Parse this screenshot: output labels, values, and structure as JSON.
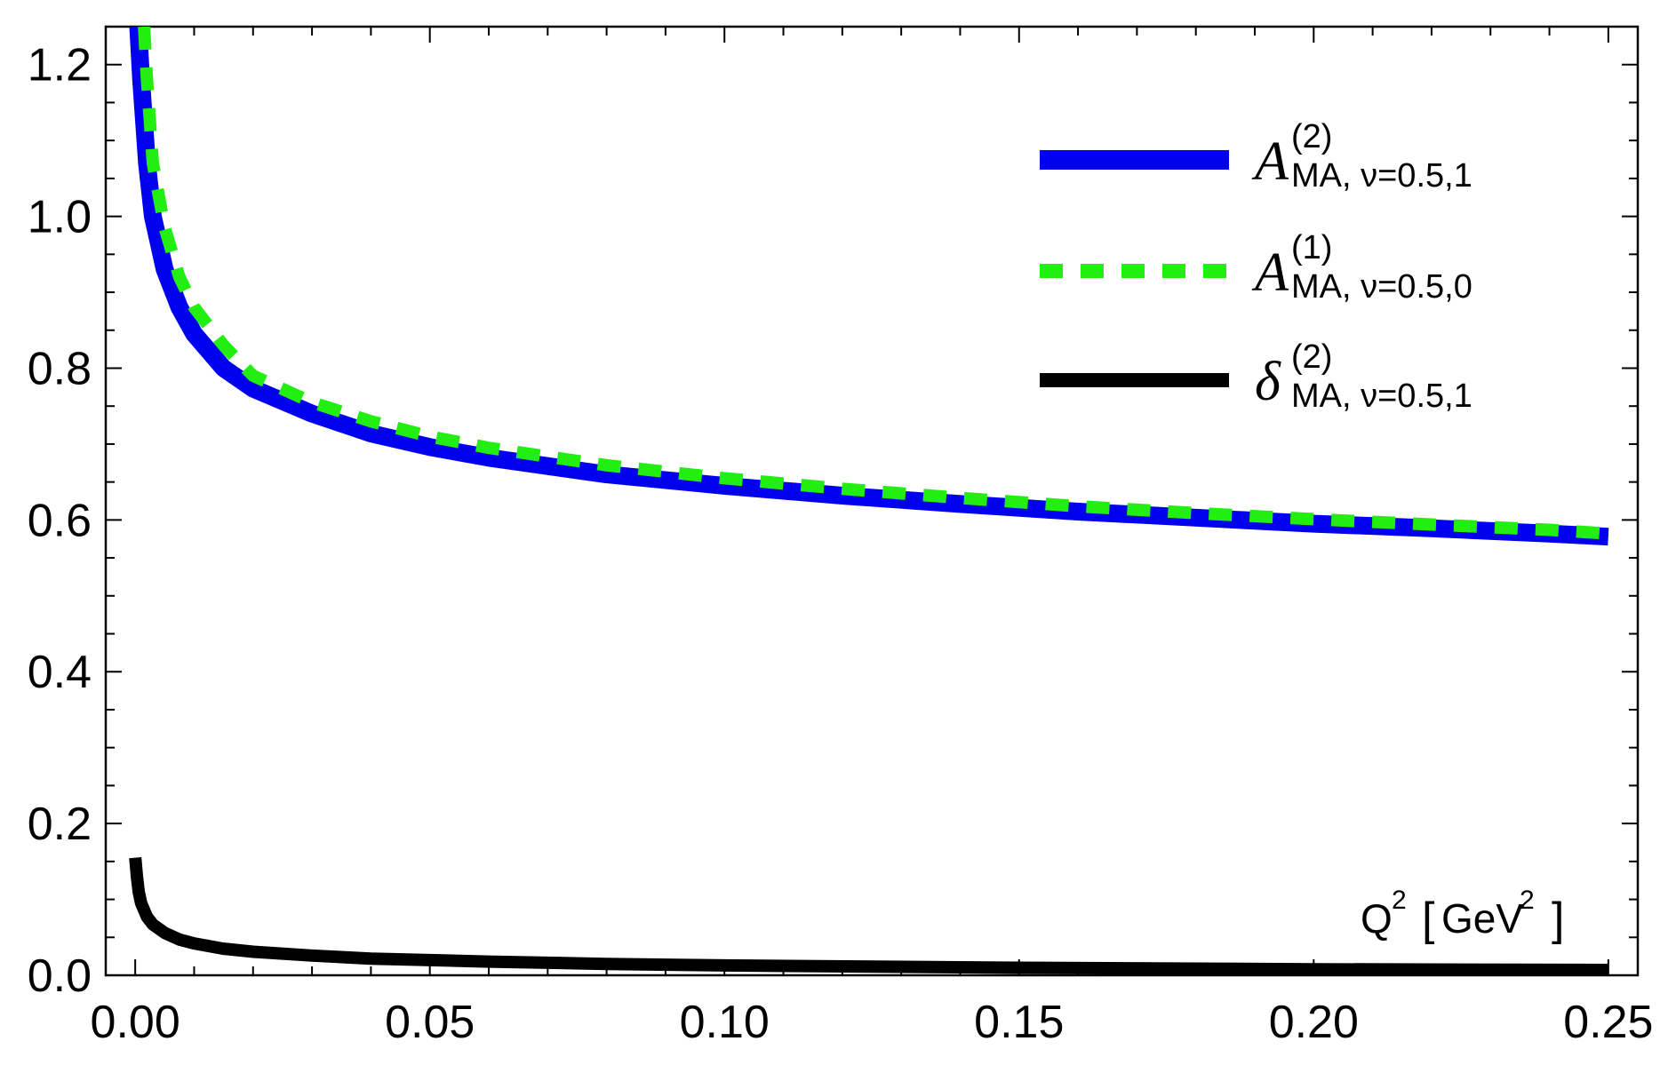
{
  "chart_data": {
    "type": "line",
    "title": "",
    "xlabel": {
      "base": "Q",
      "base_sup": "2",
      "open": "[",
      "unit": "GeV",
      "unit_sup": "2",
      "close": "]"
    },
    "ylabel": "",
    "xlim": [
      -0.005,
      0.255
    ],
    "ylim": [
      0.0,
      1.25
    ],
    "x_ticks": [
      {
        "value": 0.0,
        "label": "0.00"
      },
      {
        "value": 0.05,
        "label": "0.05"
      },
      {
        "value": 0.1,
        "label": "0.10"
      },
      {
        "value": 0.15,
        "label": "0.15"
      },
      {
        "value": 0.2,
        "label": "0.20"
      },
      {
        "value": 0.25,
        "label": "0.25"
      }
    ],
    "y_ticks": [
      {
        "value": 0.0,
        "label": "0.0"
      },
      {
        "value": 0.2,
        "label": "0.2"
      },
      {
        "value": 0.4,
        "label": "0.4"
      },
      {
        "value": 0.6,
        "label": "0.6"
      },
      {
        "value": 0.8,
        "label": "0.8"
      },
      {
        "value": 1.0,
        "label": "1.0"
      },
      {
        "value": 1.2,
        "label": "1.2"
      }
    ],
    "grid": false,
    "legend_position": "top-right",
    "series": [
      {
        "key": "a2",
        "color": "#0000ee",
        "style": "solid",
        "legend": {
          "main": "A",
          "sup": "(2)",
          "sub": "MA, ν=0.5,1"
        },
        "x": [
          0.0005,
          0.001,
          0.002,
          0.003,
          0.005,
          0.0075,
          0.01,
          0.015,
          0.02,
          0.03,
          0.04,
          0.05,
          0.06,
          0.08,
          0.1,
          0.12,
          0.14,
          0.16,
          0.18,
          0.2,
          0.22,
          0.24,
          0.25
        ],
        "y": [
          1.25,
          1.18,
          1.07,
          1.0,
          0.93,
          0.88,
          0.845,
          0.8,
          0.773,
          0.74,
          0.714,
          0.696,
          0.682,
          0.66,
          0.645,
          0.632,
          0.621,
          0.611,
          0.603,
          0.595,
          0.589,
          0.582,
          0.578
        ]
      },
      {
        "key": "a1",
        "color": "#22ee11",
        "style": "dashed",
        "legend": {
          "main": "A",
          "sup": "(1)",
          "sub": "MA, ν=0.5,0"
        },
        "x": [
          0.0015,
          0.002,
          0.003,
          0.005,
          0.0075,
          0.01,
          0.015,
          0.02,
          0.03,
          0.04,
          0.05,
          0.06,
          0.08,
          0.1,
          0.12,
          0.14,
          0.16,
          0.18,
          0.2,
          0.22,
          0.24,
          0.25
        ],
        "y": [
          1.25,
          1.18,
          1.07,
          0.985,
          0.92,
          0.88,
          0.83,
          0.79,
          0.755,
          0.73,
          0.71,
          0.695,
          0.672,
          0.655,
          0.641,
          0.629,
          0.618,
          0.609,
          0.601,
          0.594,
          0.587,
          0.582
        ]
      },
      {
        "key": "d2",
        "color": "#000000",
        "style": "solid",
        "legend": {
          "main": "δ",
          "sup": "(2)",
          "sub": "MA, ν=0.5,1"
        },
        "x": [
          0.0,
          0.0003,
          0.0006,
          0.001,
          0.002,
          0.003,
          0.005,
          0.0075,
          0.01,
          0.015,
          0.02,
          0.03,
          0.04,
          0.06,
          0.08,
          0.1,
          0.15,
          0.2,
          0.25
        ],
        "y": [
          0.155,
          0.13,
          0.11,
          0.095,
          0.077,
          0.067,
          0.056,
          0.047,
          0.042,
          0.035,
          0.031,
          0.026,
          0.022,
          0.018,
          0.015,
          0.013,
          0.01,
          0.008,
          0.007
        ]
      }
    ]
  }
}
